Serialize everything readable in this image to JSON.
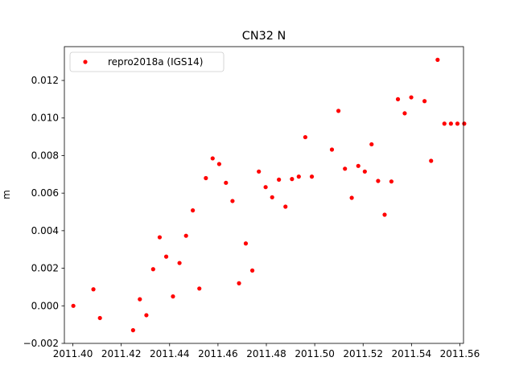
{
  "chart_data": {
    "type": "scatter",
    "title": "CN32 N",
    "xlabel": "",
    "ylabel": "m",
    "xlim": [
      2011.3965,
      2011.5615
    ],
    "ylim": [
      -0.002,
      0.0138
    ],
    "grid": false,
    "legend_position": "top-left",
    "x_tick_labels": [
      "2011.40",
      "2011.42",
      "2011.44",
      "2011.46",
      "2011.48",
      "2011.50",
      "2011.52",
      "2011.54",
      "2011.56"
    ],
    "x_ticks": [
      2011.4,
      2011.42,
      2011.44,
      2011.46,
      2011.48,
      2011.5,
      2011.52,
      2011.54,
      2011.56
    ],
    "y_tick_labels": [
      "−0.002",
      "0.000",
      "0.002",
      "0.004",
      "0.006",
      "0.008",
      "0.010",
      "0.012"
    ],
    "y_ticks": [
      -0.002,
      0.0,
      0.002,
      0.004,
      0.006,
      0.008,
      0.01,
      0.012
    ],
    "series": [
      {
        "name": "repro2018a (IGS14)",
        "color": "#ff0000",
        "marker": "circle",
        "x": [
          2011.4002,
          2011.4085,
          2011.4112,
          2011.4249,
          2011.4277,
          2011.4304,
          2011.4332,
          2011.4359,
          2011.4386,
          2011.4414,
          2011.4441,
          2011.4468,
          2011.4496,
          2011.4523,
          2011.455,
          2011.4578,
          2011.4605,
          2011.4633,
          2011.466,
          2011.4687,
          2011.4715,
          2011.4742,
          2011.4769,
          2011.4797,
          2011.4824,
          2011.4852,
          2011.4879,
          2011.4906,
          2011.4934,
          2011.4961,
          2011.4988,
          2011.5071,
          2011.5098,
          2011.5125,
          2011.5153,
          2011.518,
          2011.5207,
          2011.5235,
          2011.5262,
          2011.5289,
          2011.5317,
          2011.5344,
          2011.5372,
          2011.5399,
          2011.5454,
          2011.5481,
          2011.5508,
          2011.5536,
          2011.5563,
          2011.559,
          2011.5618
        ],
        "y": [
          0.0,
          0.00088,
          -0.00065,
          -0.0013,
          0.00035,
          -0.0005,
          0.00195,
          0.00365,
          0.00262,
          0.0005,
          0.00228,
          0.00373,
          0.00508,
          0.00092,
          0.0068,
          0.00785,
          0.00755,
          0.00655,
          0.00558,
          0.0012,
          0.00332,
          0.00188,
          0.00715,
          0.00632,
          0.00578,
          0.00672,
          0.00528,
          0.00675,
          0.00688,
          0.00898,
          0.00688,
          0.00832,
          0.01038,
          0.0073,
          0.00575,
          0.00745,
          0.00715,
          0.0086,
          0.00665,
          0.00485,
          0.00662,
          0.011,
          0.01025,
          0.0111,
          0.0109,
          0.00772,
          0.0131,
          0.0097,
          0.0097,
          0.0097,
          0.0097
        ]
      }
    ]
  }
}
